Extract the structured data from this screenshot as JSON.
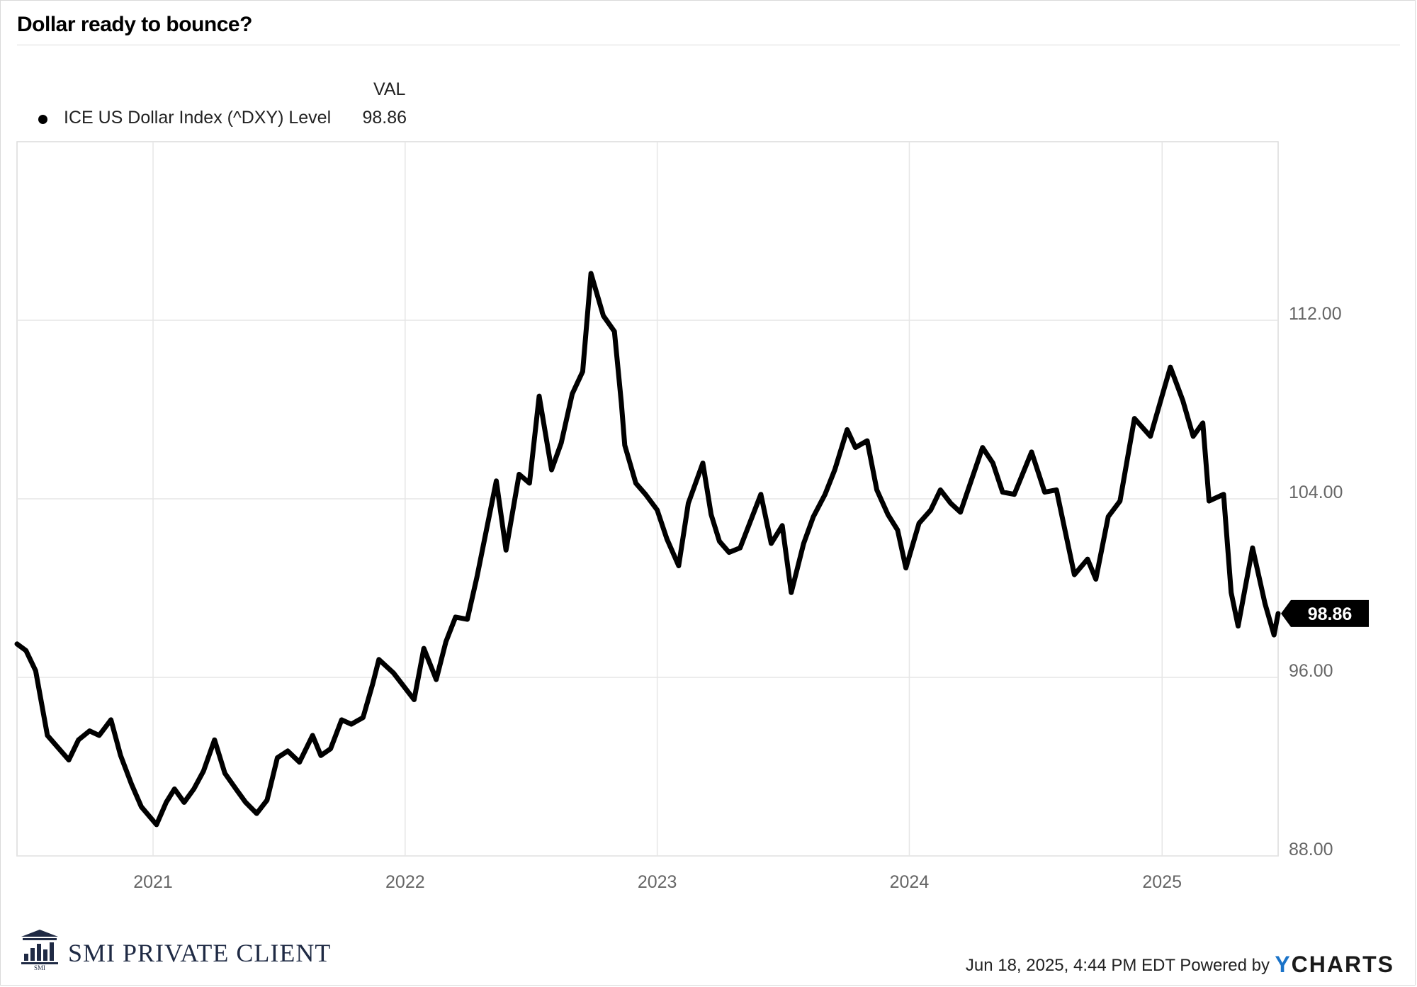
{
  "header": {
    "title": "Dollar ready to bounce?"
  },
  "legend": {
    "column_header": "VAL",
    "series_name": "ICE US Dollar Index (^DXY) Level",
    "series_value": "98.86"
  },
  "footer": {
    "brand_name": "SMI PRIVATE CLIENT",
    "brand_mark_text": "SMI",
    "timestamp": "Jun 18, 2025, 4:44 PM EDT Powered by",
    "provider_y": "Y",
    "provider_rest": "CHARTS"
  },
  "colors": {
    "line": "#000000",
    "grid": "#e6e6e6",
    "axis_text": "#666666",
    "brand": "#1f2a44",
    "provider_accent": "#1a73c8"
  },
  "chart_data": {
    "type": "line",
    "x_axis": {
      "type": "date",
      "min": "2020-06-18",
      "max": "2025-06-18",
      "tick_labels": [
        "2021",
        "2022",
        "2023",
        "2024",
        "2025"
      ],
      "tick_dates": [
        "2021-01-01",
        "2022-01-01",
        "2023-01-01",
        "2024-01-01",
        "2025-01-01"
      ]
    },
    "y_axis": {
      "position": "right",
      "min": 88,
      "max": 120,
      "ticks": [
        88,
        96,
        104,
        112
      ],
      "tick_labels": [
        "88.00",
        "96.00",
        "104.00",
        "112.00"
      ]
    },
    "grid": true,
    "last_value_label": "98.86",
    "series": [
      {
        "name": "ICE US Dollar Index (^DXY) Level",
        "points": [
          [
            "2020-06-18",
            97.5
          ],
          [
            "2020-07-01",
            97.2
          ],
          [
            "2020-07-15",
            96.3
          ],
          [
            "2020-08-01",
            93.4
          ],
          [
            "2020-08-15",
            92.9
          ],
          [
            "2020-09-01",
            92.3
          ],
          [
            "2020-09-15",
            93.2
          ],
          [
            "2020-10-01",
            93.6
          ],
          [
            "2020-10-15",
            93.4
          ],
          [
            "2020-11-01",
            94.1
          ],
          [
            "2020-11-15",
            92.5
          ],
          [
            "2020-12-01",
            91.2
          ],
          [
            "2020-12-15",
            90.2
          ],
          [
            "2021-01-06",
            89.4
          ],
          [
            "2021-01-20",
            90.4
          ],
          [
            "2021-02-01",
            91.0
          ],
          [
            "2021-02-15",
            90.4
          ],
          [
            "2021-03-01",
            91.0
          ],
          [
            "2021-03-15",
            91.8
          ],
          [
            "2021-03-31",
            93.2
          ],
          [
            "2021-04-15",
            91.7
          ],
          [
            "2021-05-01",
            91.0
          ],
          [
            "2021-05-15",
            90.4
          ],
          [
            "2021-05-31",
            89.9
          ],
          [
            "2021-06-15",
            90.5
          ],
          [
            "2021-06-30",
            92.4
          ],
          [
            "2021-07-15",
            92.7
          ],
          [
            "2021-08-01",
            92.2
          ],
          [
            "2021-08-20",
            93.4
          ],
          [
            "2021-09-01",
            92.5
          ],
          [
            "2021-09-15",
            92.8
          ],
          [
            "2021-10-01",
            94.1
          ],
          [
            "2021-10-15",
            93.9
          ],
          [
            "2021-11-01",
            94.2
          ],
          [
            "2021-11-15",
            95.7
          ],
          [
            "2021-11-24",
            96.8
          ],
          [
            "2021-12-15",
            96.2
          ],
          [
            "2022-01-14",
            95.0
          ],
          [
            "2022-01-28",
            97.3
          ],
          [
            "2022-02-15",
            95.9
          ],
          [
            "2022-03-01",
            97.6
          ],
          [
            "2022-03-15",
            98.7
          ],
          [
            "2022-04-01",
            98.6
          ],
          [
            "2022-04-15",
            100.5
          ],
          [
            "2022-05-13",
            104.8
          ],
          [
            "2022-05-27",
            101.7
          ],
          [
            "2022-06-15",
            105.1
          ],
          [
            "2022-06-30",
            104.7
          ],
          [
            "2022-07-14",
            108.6
          ],
          [
            "2022-08-01",
            105.3
          ],
          [
            "2022-08-15",
            106.5
          ],
          [
            "2022-08-31",
            108.7
          ],
          [
            "2022-09-15",
            109.7
          ],
          [
            "2022-09-27",
            114.1
          ],
          [
            "2022-10-15",
            112.2
          ],
          [
            "2022-10-31",
            111.5
          ],
          [
            "2022-11-10",
            108.3
          ],
          [
            "2022-11-15",
            106.4
          ],
          [
            "2022-12-01",
            104.7
          ],
          [
            "2022-12-15",
            104.2
          ],
          [
            "2023-01-01",
            103.5
          ],
          [
            "2023-01-15",
            102.2
          ],
          [
            "2023-02-01",
            101.0
          ],
          [
            "2023-02-15",
            103.8
          ],
          [
            "2023-03-08",
            105.6
          ],
          [
            "2023-03-20",
            103.3
          ],
          [
            "2023-04-01",
            102.1
          ],
          [
            "2023-04-15",
            101.6
          ],
          [
            "2023-05-01",
            101.8
          ],
          [
            "2023-05-31",
            104.2
          ],
          [
            "2023-06-15",
            102.0
          ],
          [
            "2023-07-01",
            102.8
          ],
          [
            "2023-07-14",
            99.8
          ],
          [
            "2023-08-01",
            102.0
          ],
          [
            "2023-08-15",
            103.2
          ],
          [
            "2023-09-01",
            104.2
          ],
          [
            "2023-09-15",
            105.3
          ],
          [
            "2023-10-03",
            107.1
          ],
          [
            "2023-10-15",
            106.3
          ],
          [
            "2023-11-01",
            106.6
          ],
          [
            "2023-11-15",
            104.4
          ],
          [
            "2023-12-01",
            103.3
          ],
          [
            "2023-12-15",
            102.6
          ],
          [
            "2023-12-27",
            100.9
          ],
          [
            "2024-01-15",
            102.9
          ],
          [
            "2024-02-01",
            103.5
          ],
          [
            "2024-02-15",
            104.4
          ],
          [
            "2024-03-01",
            103.8
          ],
          [
            "2024-03-15",
            103.4
          ],
          [
            "2024-04-16",
            106.3
          ],
          [
            "2024-05-01",
            105.6
          ],
          [
            "2024-05-15",
            104.3
          ],
          [
            "2024-06-01",
            104.2
          ],
          [
            "2024-06-26",
            106.1
          ],
          [
            "2024-07-15",
            104.3
          ],
          [
            "2024-08-01",
            104.4
          ],
          [
            "2024-08-27",
            100.6
          ],
          [
            "2024-09-15",
            101.3
          ],
          [
            "2024-09-27",
            100.4
          ],
          [
            "2024-10-15",
            103.2
          ],
          [
            "2024-11-01",
            103.9
          ],
          [
            "2024-11-22",
            107.6
          ],
          [
            "2024-12-15",
            106.8
          ],
          [
            "2025-01-13",
            109.9
          ],
          [
            "2025-01-31",
            108.4
          ],
          [
            "2025-02-15",
            106.8
          ],
          [
            "2025-03-01",
            107.4
          ],
          [
            "2025-03-10",
            103.9
          ],
          [
            "2025-03-31",
            104.2
          ],
          [
            "2025-04-11",
            99.8
          ],
          [
            "2025-04-21",
            98.3
          ],
          [
            "2025-05-12",
            101.8
          ],
          [
            "2025-05-30",
            99.3
          ],
          [
            "2025-06-12",
            97.9
          ],
          [
            "2025-06-18",
            98.86
          ]
        ]
      }
    ]
  }
}
